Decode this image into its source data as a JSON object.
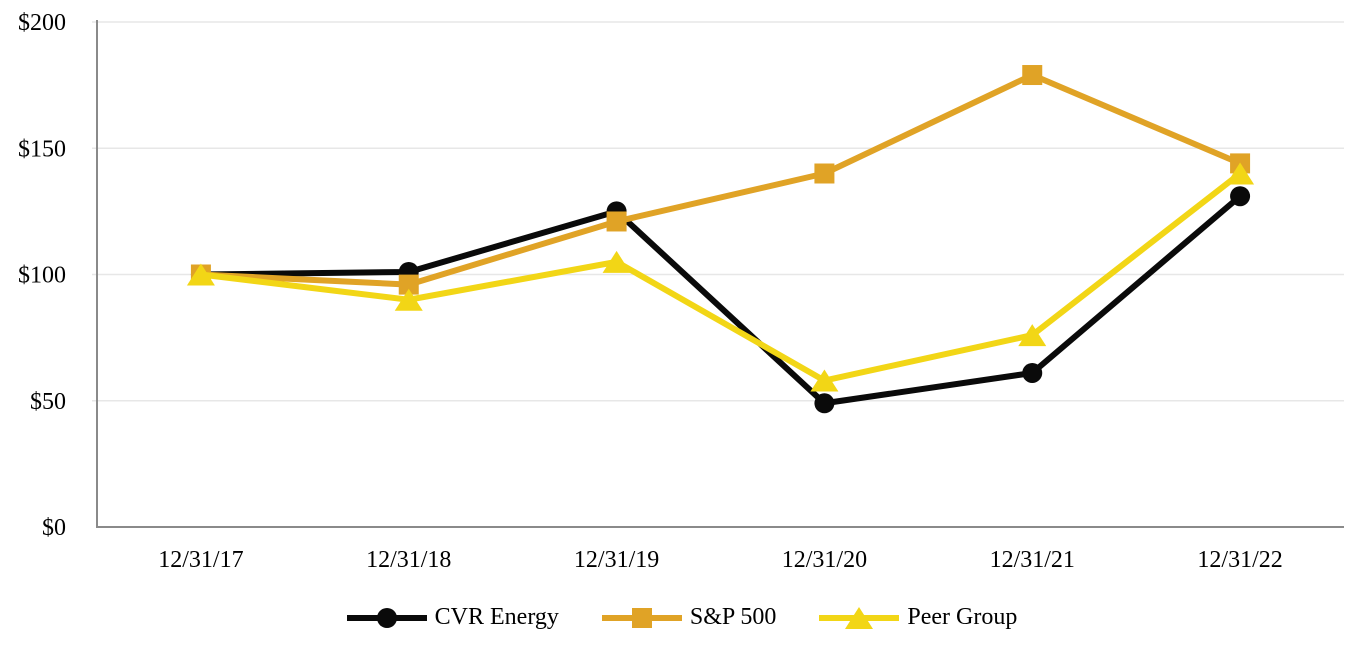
{
  "chart_data": {
    "type": "line",
    "x": [
      "12/31/17",
      "12/31/18",
      "12/31/19",
      "12/31/20",
      "12/31/21",
      "12/31/22"
    ],
    "series": [
      {
        "name": "CVR Energy",
        "marker": "circle",
        "color": "#0a0a0a",
        "values": [
          100,
          101,
          125,
          49,
          61,
          131
        ]
      },
      {
        "name": "S&P 500",
        "marker": "square",
        "color": "#e0a326",
        "values": [
          100,
          96,
          121,
          140,
          179,
          144
        ]
      },
      {
        "name": "Peer Group",
        "marker": "triangle",
        "color": "#f2d616",
        "values": [
          100,
          90,
          105,
          58,
          76,
          140
        ]
      }
    ],
    "ylim": [
      0,
      200
    ],
    "yticks": [
      0,
      50,
      100,
      150,
      200
    ],
    "ytick_labels": [
      "$0",
      "$50",
      "$100",
      "$150",
      "$200"
    ],
    "grid": true,
    "legend_position": "bottom",
    "currency_prefix": "$"
  },
  "colors": {
    "background": "#ffffff",
    "gridline": "#e7e7e7",
    "axis": "#8a8a8a",
    "text": "#000000"
  }
}
